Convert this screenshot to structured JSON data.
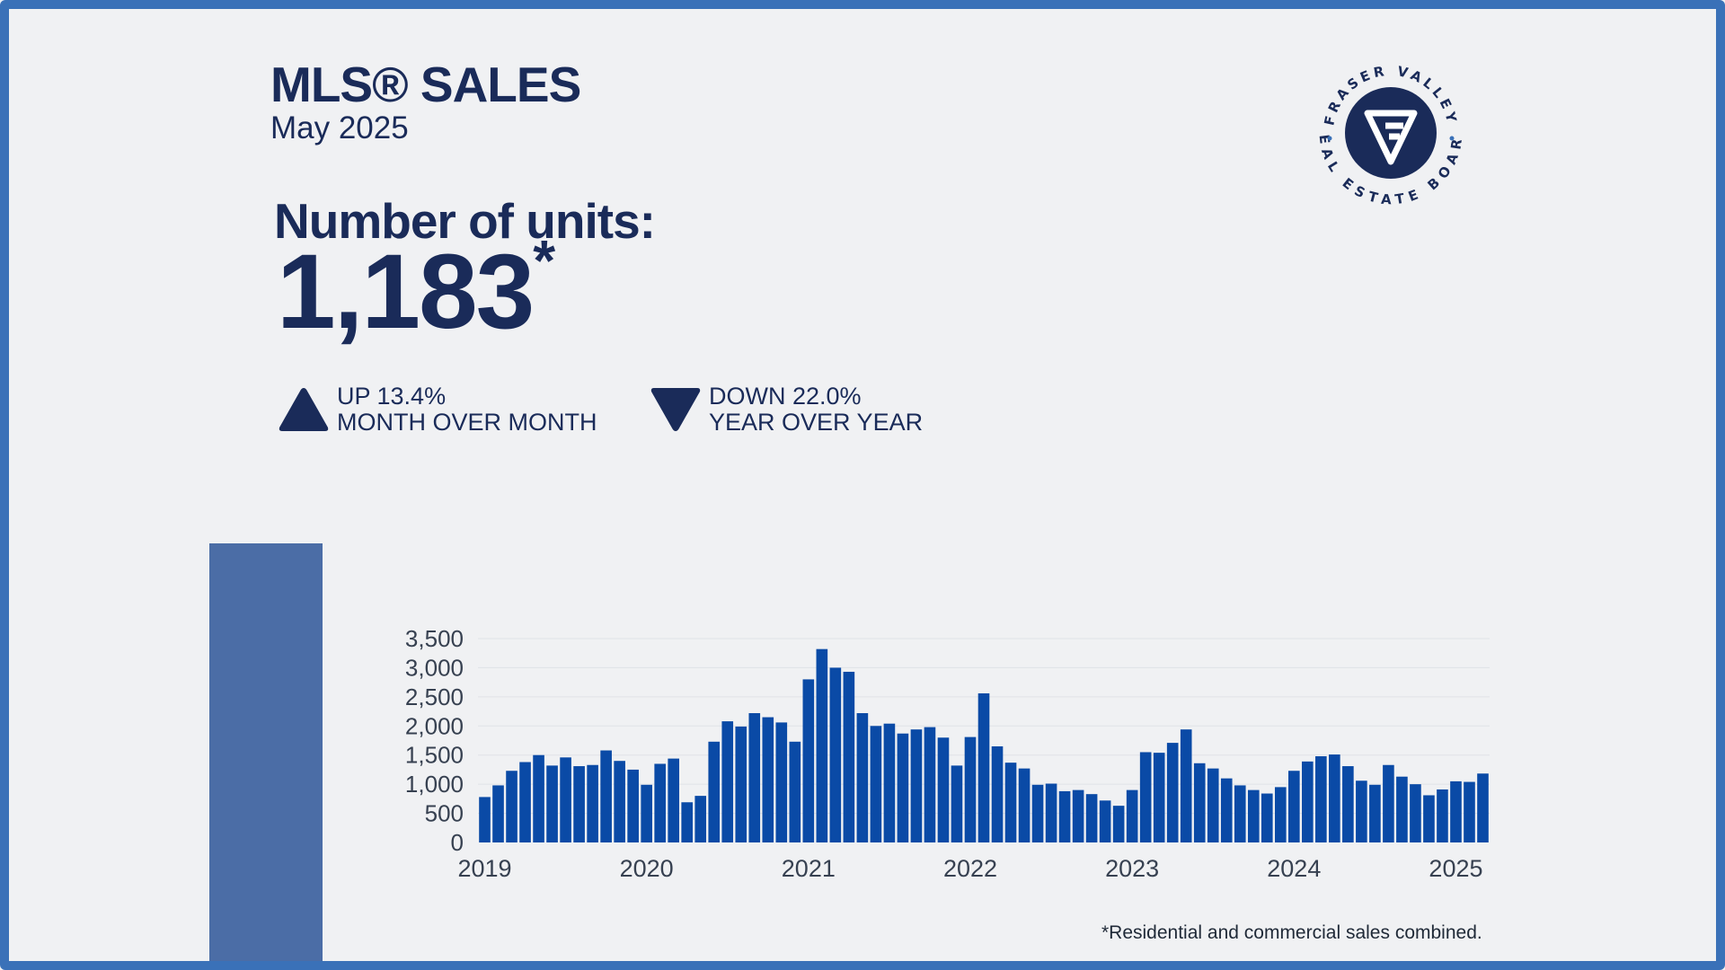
{
  "header": {
    "title": "MLS® SALES",
    "subtitle": "May 2025"
  },
  "metric": {
    "label": "Number of units:",
    "value": "1,183",
    "value_mark": "*"
  },
  "changes": {
    "mom": {
      "line1": "UP 13.4%",
      "line2": "MONTH OVER MONTH",
      "direction": "up"
    },
    "yoy": {
      "line1": "DOWN 22.0%",
      "line2": "YEAR OVER YEAR",
      "direction": "down"
    }
  },
  "logo": {
    "text_top": "FRASER VALLEY",
    "text_bottom": "REAL ESTATE BOARD",
    "color": "#1a2b59",
    "icon": "fv-logo-icon"
  },
  "footnote": "*Residential and commercial sales combined.",
  "colors": {
    "bar": "#0a4aa6",
    "text": "#1a2b59",
    "frame": "#3a71b8",
    "side_bar": "#4b6da6"
  },
  "chart_data": {
    "type": "bar",
    "title": "",
    "xlabel": "",
    "ylabel": "",
    "ylim": [
      0,
      3500
    ],
    "yticks": [
      "0",
      "500",
      "1,000",
      "1,500",
      "2,000",
      "2,500",
      "3,000",
      "3,500"
    ],
    "xtick_labels": [
      "2019",
      "2020",
      "2021",
      "2022",
      "2023",
      "2024",
      "2025"
    ],
    "grid": true,
    "legend": "none",
    "x_start": "2019-01",
    "x_end": "2025-05",
    "series": [
      {
        "values": [
          780,
          980,
          1230,
          1380,
          1500,
          1320,
          1460,
          1310,
          1330,
          1580,
          1400,
          1250,
          990,
          1350,
          1440,
          690,
          800,
          1730,
          2080,
          1990,
          2220,
          2150,
          2060,
          1730,
          2800,
          3320,
          3000,
          2930,
          2220,
          2000,
          2040,
          1870,
          1940,
          1980,
          1800,
          1320,
          1810,
          2560,
          1650,
          1370,
          1270,
          990,
          1010,
          880,
          900,
          830,
          720,
          630,
          900,
          1550,
          1540,
          1710,
          1940,
          1360,
          1270,
          1100,
          980,
          900,
          840,
          950,
          1230,
          1390,
          1480,
          1510,
          1310,
          1060,
          990,
          1330,
          1130,
          1000,
          810,
          910,
          1050,
          1040,
          1183
        ]
      }
    ]
  }
}
